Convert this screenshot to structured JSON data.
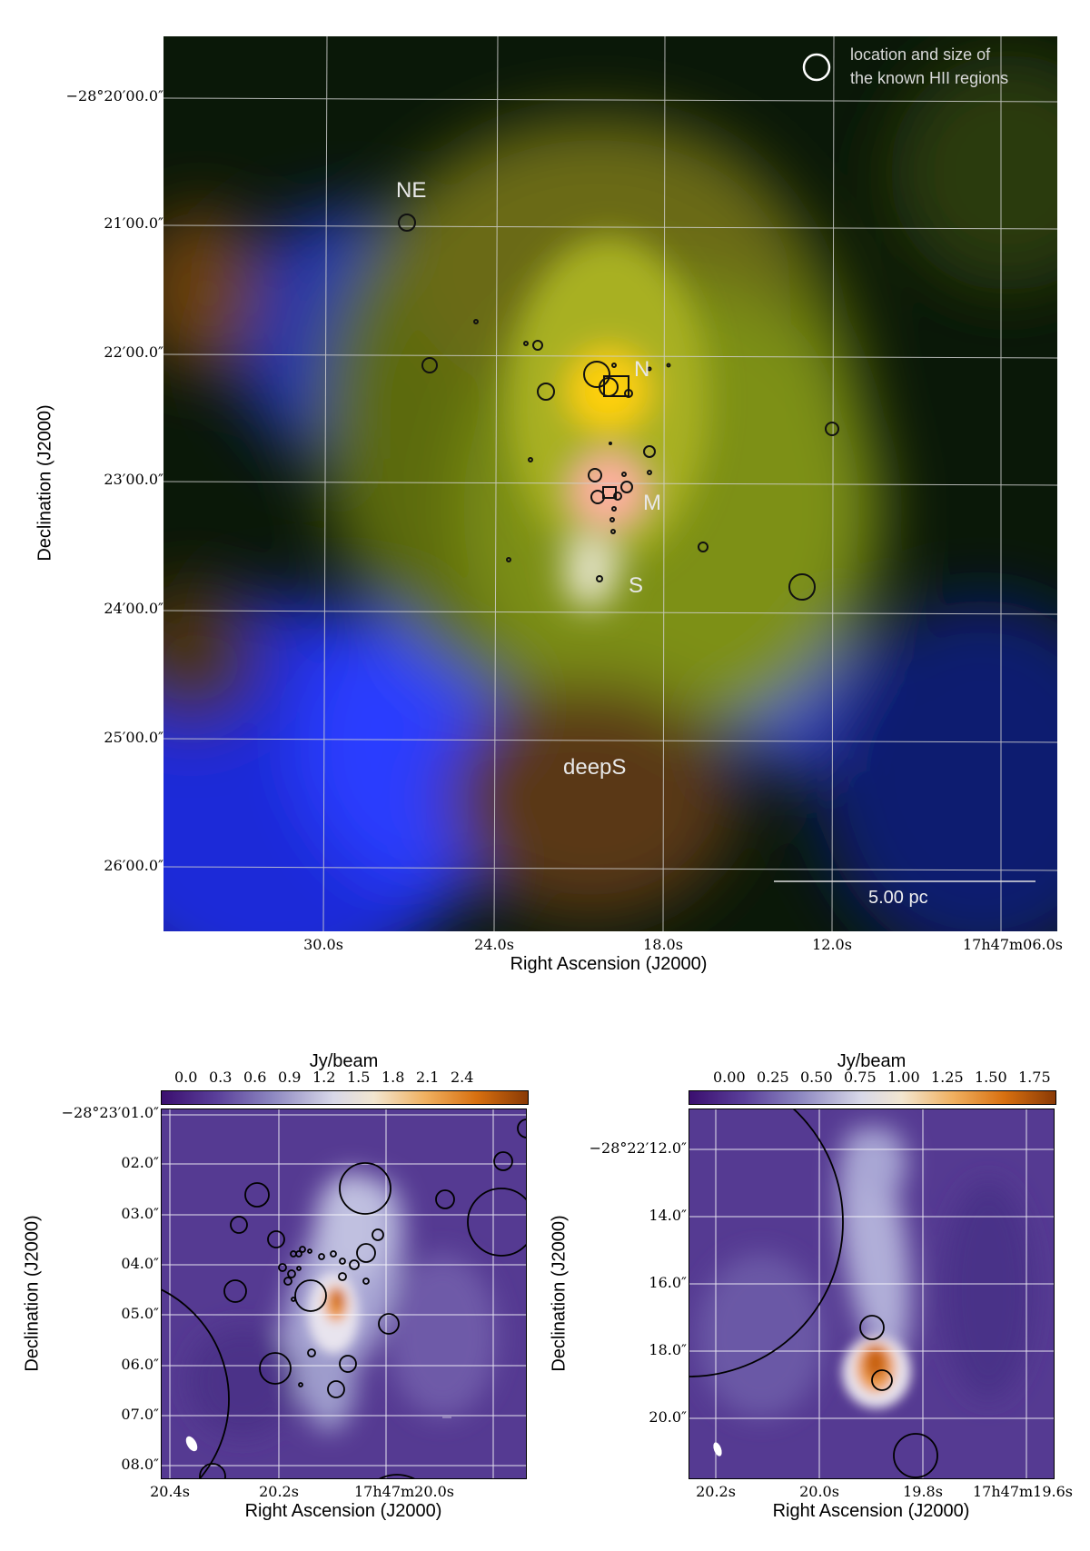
{
  "top_panel": {
    "legend_text_line1": "location and size of",
    "legend_text_line2": "the known HII regions",
    "region_labels": {
      "ne": "NE",
      "n": "N",
      "m": "M",
      "s": "S",
      "deeps": "deepS"
    },
    "scalebar_label": "5.00 pc",
    "x_axis_label": "Right Ascension (J2000)",
    "y_axis_label": "Declination (J2000)",
    "x_ticks": [
      "30.0s",
      "24.0s",
      "18.0s",
      "12.0s",
      "17h47m06.0s"
    ],
    "y_ticks": [
      "−28°20′00.0″",
      "21′00.0″",
      "22′00.0″",
      "23′00.0″",
      "24′00.0″",
      "25′00.0″",
      "26′00.0″"
    ],
    "colors": {
      "blue_channel": "#1f3cff",
      "green_channel": "#7a8a10",
      "red_channel": "#ff4020",
      "grid": "#cccccc"
    }
  },
  "bottom_left": {
    "colorbar_label": "Jy/beam",
    "colorbar_ticks": [
      "0.0",
      "0.3",
      "0.6",
      "0.9",
      "1.2",
      "1.5",
      "1.8",
      "2.1",
      "2.4"
    ],
    "x_axis_label": "Right Ascension (J2000)",
    "y_axis_label": "Declination (J2000)",
    "x_ticks": [
      "20.4s",
      "20.2s",
      "17h47m20.0s"
    ],
    "y_ticks": [
      "−28°23′01.0″",
      "02.0″",
      "03.0″",
      "04.0″",
      "05.0″",
      "06.0″",
      "07.0″",
      "08.0″"
    ]
  },
  "bottom_right": {
    "colorbar_label": "Jy/beam",
    "colorbar_ticks": [
      "0.00",
      "0.25",
      "0.50",
      "0.75",
      "1.00",
      "1.25",
      "1.50",
      "1.75"
    ],
    "x_axis_label": "Right Ascension (J2000)",
    "y_axis_label": "Declination (J2000)",
    "x_ticks": [
      "20.2s",
      "20.0s",
      "19.8s",
      "17h47m19.6s"
    ],
    "y_ticks": [
      "−28°22′12.0″",
      "14.0″",
      "16.0″",
      "18.0″",
      "20.0″"
    ]
  }
}
